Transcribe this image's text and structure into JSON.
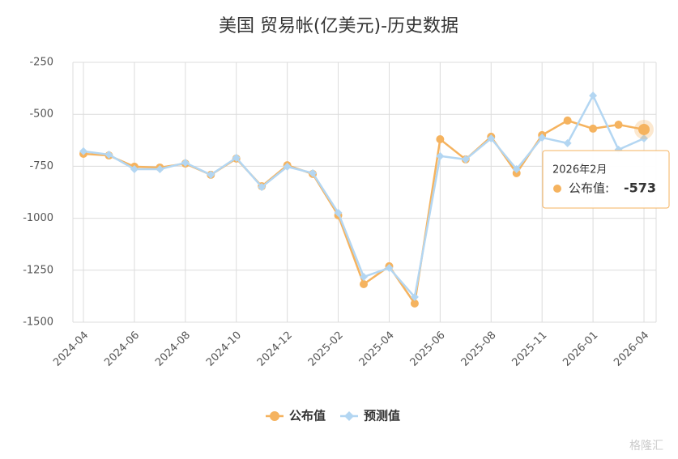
{
  "chart_data": {
    "type": "line",
    "title": "美国 贸易帐(亿美元)-历史数据",
    "categories": [
      "2024-04",
      null,
      "2024-06",
      null,
      "2024-08",
      null,
      "2024-10",
      null,
      "2024-12",
      null,
      "2025-02",
      null,
      "2025-04",
      null,
      "2025-06",
      null,
      "2025-08",
      null,
      "2025-11",
      null,
      "2026-01",
      null,
      "2026-04"
    ],
    "series": [
      {
        "name": "公布值",
        "color": "#f5b35f",
        "values": [
          -690,
          -698,
          -752,
          -756,
          -737,
          -791,
          -713,
          -846,
          -745,
          -787,
          -986,
          -1317,
          -1231,
          -1410,
          -620,
          -717,
          -608,
          -783,
          -600,
          -530,
          -569,
          -550,
          -573
        ]
      },
      {
        "name": "预测值",
        "color": "#b3d6f2",
        "values": [
          -678,
          -694,
          -764,
          -764,
          -733,
          -791,
          -709,
          -850,
          -752,
          -783,
          -974,
          -1282,
          -1239,
          -1379,
          -701,
          -717,
          -616,
          -764,
          -612,
          -639,
          -410,
          -670,
          -616
        ]
      }
    ],
    "ylim": [
      -1500,
      -250
    ],
    "yticks": [
      -250,
      -500,
      -750,
      -1000,
      -1250,
      -1500
    ],
    "grid": true,
    "legend": "bottom",
    "tooltip": {
      "title": "2026年2月",
      "label": "公布值:"
    },
    "watermark": "格隆汇"
  }
}
